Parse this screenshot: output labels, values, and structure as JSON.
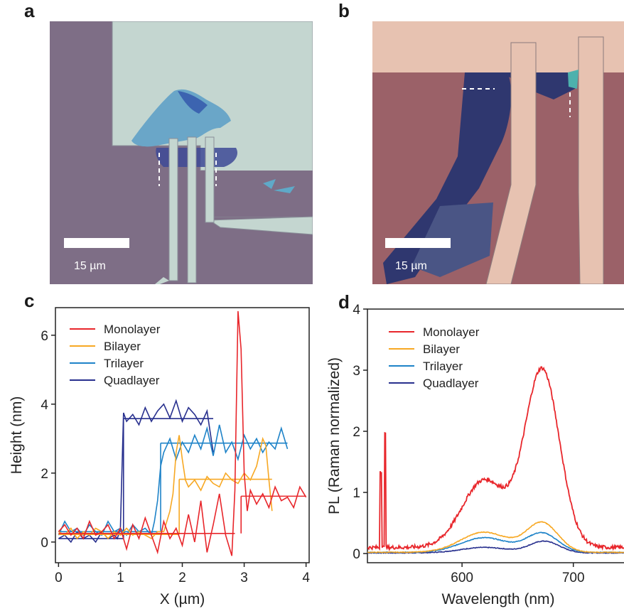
{
  "panels": {
    "a": {
      "letter": "a",
      "scale_bar_label": "15 µm",
      "colors": {
        "substrate": "#837186",
        "metal_pad": "#c6d8d2",
        "flake": "#6aa7c9",
        "flake_dark": "#3b5fa8"
      }
    },
    "b": {
      "letter": "b",
      "scale_bar_label": "15 µm",
      "colors": {
        "substrate": "#a06670",
        "metal_pad": "#e9c2b1",
        "flake": "#4e5b8a",
        "flake_dark": "#2d3470"
      }
    },
    "c": {
      "letter": "c",
      "chart_data": {
        "type": "line",
        "xlabel": "X (µm)",
        "ylabel": "Height (nm)",
        "xlim": [
          -0.05,
          4.05
        ],
        "ylim": [
          -0.6,
          6.8
        ],
        "xticks": [
          0,
          1,
          2,
          3,
          4
        ],
        "yticks": [
          0,
          2,
          4,
          6
        ],
        "legend_position": "top-left",
        "series": [
          {
            "name": "Monolayer",
            "color": "#e8262b",
            "x": [
              0,
              0.1,
              0.2,
              0.3,
              0.4,
              0.5,
              0.6,
              0.7,
              0.8,
              0.9,
              1.0,
              1.1,
              1.2,
              1.3,
              1.4,
              1.5,
              1.6,
              1.7,
              1.8,
              1.9,
              2.0,
              2.1,
              2.2,
              2.3,
              2.4,
              2.5,
              2.6,
              2.7,
              2.8,
              2.85,
              2.9,
              2.95,
              3.0,
              3.05,
              3.1,
              3.2,
              3.3,
              3.4,
              3.5,
              3.6,
              3.7,
              3.8,
              3.9,
              4.0
            ],
            "y": [
              0.3,
              0.5,
              0.2,
              0.4,
              0.1,
              0.6,
              0.2,
              0.3,
              0.5,
              0.1,
              0.4,
              -0.2,
              0.5,
              0.1,
              0.7,
              0.2,
              -0.3,
              0.6,
              0.1,
              0.4,
              -0.1,
              0.8,
              0.0,
              1.2,
              -0.3,
              0.5,
              1.4,
              0.2,
              -0.4,
              1.5,
              6.7,
              5.6,
              2.0,
              0.9,
              1.5,
              1.1,
              1.4,
              1.0,
              1.6,
              1.2,
              1.3,
              1.0,
              1.6,
              1.3
            ],
            "fit_steps": [
              {
                "x": [
                  0,
                  2.85
                ],
                "y": [
                  0.25,
                  0.25
                ]
              },
              {
                "x": [
                  2.95,
                  4.0
                ],
                "y": [
                  1.33,
                  1.33
                ]
              }
            ]
          },
          {
            "name": "Bilayer",
            "color": "#f7a823",
            "x": [
              0,
              0.1,
              0.2,
              0.3,
              0.4,
              0.5,
              0.6,
              0.7,
              0.8,
              0.9,
              1.0,
              1.1,
              1.2,
              1.3,
              1.4,
              1.5,
              1.6,
              1.7,
              1.8,
              1.85,
              1.9,
              1.95,
              2.0,
              2.05,
              2.1,
              2.2,
              2.3,
              2.4,
              2.5,
              2.6,
              2.7,
              2.8,
              2.9,
              3.0,
              3.1,
              3.2,
              3.3,
              3.35,
              3.4,
              3.45
            ],
            "y": [
              0.3,
              0.2,
              0.4,
              0.1,
              0.3,
              0.2,
              0.4,
              0.3,
              0.1,
              0.3,
              0.2,
              0.4,
              0.2,
              0.3,
              0.2,
              0.1,
              0.3,
              0.3,
              0.9,
              1.4,
              2.6,
              3.1,
              2.4,
              1.8,
              1.6,
              1.8,
              1.5,
              1.9,
              1.7,
              1.6,
              2.0,
              1.8,
              1.7,
              2.0,
              1.8,
              2.2,
              3.0,
              2.8,
              1.8,
              0.9
            ],
            "fit_steps": [
              {
                "x": [
                  0,
                  1.95
                ],
                "y": [
                  0.22,
                  0.22
                ]
              },
              {
                "x": [
                  1.95,
                  3.45
                ],
                "y": [
                  1.82,
                  1.82
                ]
              }
            ]
          },
          {
            "name": "Trilayer",
            "color": "#1e83c8",
            "x": [
              0,
              0.1,
              0.2,
              0.3,
              0.4,
              0.5,
              0.6,
              0.7,
              0.8,
              0.9,
              1.0,
              1.1,
              1.2,
              1.3,
              1.4,
              1.5,
              1.55,
              1.6,
              1.65,
              1.7,
              1.8,
              1.9,
              2.0,
              2.1,
              2.2,
              2.3,
              2.4,
              2.5,
              2.6,
              2.7,
              2.8,
              2.9,
              3.0,
              3.1,
              3.2,
              3.3,
              3.4,
              3.5,
              3.6,
              3.7
            ],
            "y": [
              0.2,
              0.6,
              0.3,
              0.4,
              0.2,
              0.5,
              0.3,
              0.2,
              0.6,
              0.3,
              0.4,
              0.2,
              0.5,
              0.3,
              0.4,
              0.2,
              0.6,
              1.2,
              2.2,
              2.6,
              3.0,
              2.4,
              2.9,
              2.6,
              3.1,
              2.7,
              3.3,
              2.5,
              3.4,
              2.6,
              2.9,
              2.4,
              3.1,
              2.7,
              3.0,
              2.6,
              2.9,
              2.7,
              3.3,
              2.7
            ],
            "fit_steps": [
              {
                "x": [
                  0,
                  1.65
                ],
                "y": [
                  0.3,
                  0.3
                ]
              },
              {
                "x": [
                  1.65,
                  3.7
                ],
                "y": [
                  2.87,
                  2.87
                ]
              }
            ]
          },
          {
            "name": "Quadlayer",
            "color": "#28308e",
            "x": [
              0,
              0.1,
              0.2,
              0.3,
              0.4,
              0.5,
              0.6,
              0.7,
              0.8,
              0.9,
              0.95,
              1.0,
              1.05,
              1.1,
              1.2,
              1.3,
              1.4,
              1.5,
              1.6,
              1.7,
              1.8,
              1.9,
              2.0,
              2.1,
              2.2,
              2.3,
              2.4,
              2.5
            ],
            "y": [
              0.1,
              0.2,
              0.0,
              0.3,
              0.1,
              0.2,
              0.0,
              0.3,
              0.1,
              0.2,
              0.1,
              0.4,
              3.75,
              3.5,
              3.7,
              3.4,
              3.9,
              3.5,
              3.8,
              4.0,
              3.6,
              4.1,
              3.5,
              3.9,
              3.7,
              3.4,
              3.8,
              2.6
            ],
            "fit_steps": [
              {
                "x": [
                  0,
                  1.05
                ],
                "y": [
                  0.1,
                  0.1
                ]
              },
              {
                "x": [
                  1.05,
                  2.5
                ],
                "y": [
                  3.58,
                  3.58
                ]
              }
            ]
          }
        ]
      }
    },
    "d": {
      "letter": "d",
      "chart_data": {
        "type": "line",
        "xlabel": "Wavelength (nm)",
        "ylabel": "PL (Raman normalized)",
        "xlim": [
          515,
          750
        ],
        "ylim": [
          -0.15,
          4.0
        ],
        "xticks": [
          600,
          700
        ],
        "yticks": [
          0,
          1,
          2,
          3,
          4
        ],
        "legend_position": "top-left",
        "series": [
          {
            "name": "Monolayer",
            "color": "#e8262b",
            "peaks": [
              {
                "center": 620,
                "amp": 1.1,
                "width": 28
              },
              {
                "center": 672,
                "amp": 2.9,
                "width": 22
              }
            ],
            "raman_lines": [
              {
                "x": 527,
                "h": 1.25
              },
              {
                "x": 531,
                "h": 1.9
              }
            ],
            "baseline": 0.1
          },
          {
            "name": "Bilayer",
            "color": "#f7a823",
            "peaks": [
              {
                "center": 620,
                "amp": 0.33,
                "width": 30
              },
              {
                "center": 672,
                "amp": 0.48,
                "width": 20
              }
            ],
            "baseline": 0.02
          },
          {
            "name": "Trilayer",
            "color": "#1e83c8",
            "peaks": [
              {
                "center": 620,
                "amp": 0.24,
                "width": 30
              },
              {
                "center": 672,
                "amp": 0.31,
                "width": 20
              }
            ],
            "baseline": 0.02
          },
          {
            "name": "Quadlayer",
            "color": "#28308e",
            "peaks": [
              {
                "center": 620,
                "amp": 0.09,
                "width": 30
              },
              {
                "center": 674,
                "amp": 0.19,
                "width": 19
              }
            ],
            "baseline": 0.01
          }
        ]
      }
    }
  }
}
